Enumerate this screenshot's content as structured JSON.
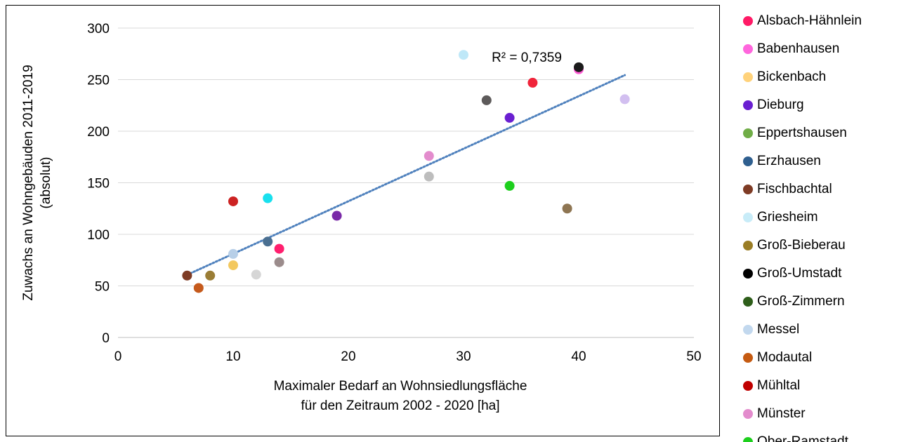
{
  "chart_data": {
    "type": "scatter",
    "title": "",
    "xlabel": [
      "Maximaler  Bedarf an Wohnsiedlungsfläche",
      "für den Zeitraum 2002 - 2020 [ha]"
    ],
    "ylabel": [
      "Zuwachs an Wohngebäuden 2011-2019",
      "(absolut)"
    ],
    "xlim": [
      0,
      50
    ],
    "ylim": [
      0,
      300
    ],
    "xticks": [
      0,
      10,
      20,
      30,
      40,
      50
    ],
    "yticks": [
      0,
      50,
      100,
      150,
      200,
      250,
      300
    ],
    "xtick_labels": [
      "0",
      "10",
      "20",
      "30",
      "40",
      "50"
    ],
    "ytick_labels": [
      "0",
      "50",
      "100",
      "150",
      "200",
      "250",
      "300"
    ],
    "grid": "horizontal",
    "legend_position": "right",
    "trendline": {
      "type": "linear",
      "style": "dotted",
      "color": "#4f81bd",
      "x_range": [
        6,
        44
      ],
      "label": "R² = 0,7359"
    },
    "points": [
      {
        "x": 14,
        "y": 86,
        "color": "#ff1f6e"
      },
      {
        "x": 40,
        "y": 260,
        "color": "#ff5cd6"
      },
      {
        "x": 10,
        "y": 70,
        "color": "#f3c85e"
      },
      {
        "x": 34,
        "y": 213,
        "color": "#6a1fd1"
      },
      {
        "x": 13,
        "y": 93,
        "color": "#4a6f91"
      },
      {
        "x": 6,
        "y": 60,
        "color": "#7e3b24"
      },
      {
        "x": 30,
        "y": 274,
        "color": "#bfe8f8"
      },
      {
        "x": 8,
        "y": 60,
        "color": "#9a7d35"
      },
      {
        "x": 40,
        "y": 262,
        "color": "#1b1b1b"
      },
      {
        "x": 10,
        "y": 81,
        "color": "#b7cfe8"
      },
      {
        "x": 7,
        "y": 48,
        "color": "#c55a1c"
      },
      {
        "x": 10,
        "y": 132,
        "color": "#cc2222"
      },
      {
        "x": 27,
        "y": 176,
        "color": "#e38ccd"
      },
      {
        "x": 34,
        "y": 147,
        "color": "#1dcf1d"
      },
      {
        "x": 36,
        "y": 247,
        "color": "#f0243a"
      },
      {
        "x": 32,
        "y": 230,
        "color": "#5d5a5a"
      },
      {
        "x": 13,
        "y": 135,
        "color": "#19e0ee"
      },
      {
        "x": 19,
        "y": 118,
        "color": "#7a2aa8"
      },
      {
        "x": 27,
        "y": 156,
        "color": "#bdbdbd"
      },
      {
        "x": 39,
        "y": 125,
        "color": "#8e7552"
      },
      {
        "x": 44,
        "y": 231,
        "color": "#d2bff0"
      },
      {
        "x": 12,
        "y": 61,
        "color": "#d6d6d6"
      },
      {
        "x": 14,
        "y": 73,
        "color": "#9b8c8c"
      }
    ]
  },
  "legend": [
    {
      "label": "Alsbach-Hähnlein",
      "color": "#ff1a66"
    },
    {
      "label": "Babenhausen",
      "color": "#ff66dd"
    },
    {
      "label": "Bickenbach",
      "color": "#ffd27a"
    },
    {
      "label": "Dieburg",
      "color": "#6a1fd1"
    },
    {
      "label": "Eppertshausen",
      "color": "#70ad47"
    },
    {
      "label": "Erzhausen",
      "color": "#2f5f8f"
    },
    {
      "label": "Fischbachtal",
      "color": "#7e3b24"
    },
    {
      "label": "Griesheim",
      "color": "#c8ecf8"
    },
    {
      "label": "Groß-Bieberau",
      "color": "#9a7d25"
    },
    {
      "label": "Groß-Umstadt",
      "color": "#000000"
    },
    {
      "label": "Groß-Zimmern",
      "color": "#2e5e1a"
    },
    {
      "label": "Messel",
      "color": "#c2d8ee"
    },
    {
      "label": "Modautal",
      "color": "#c55a11"
    },
    {
      "label": "Mühltal",
      "color": "#c00000"
    },
    {
      "label": "Münster",
      "color": "#e38ccd"
    },
    {
      "label": "Ober-Ramstadt",
      "color": "#1dcf1d"
    }
  ]
}
